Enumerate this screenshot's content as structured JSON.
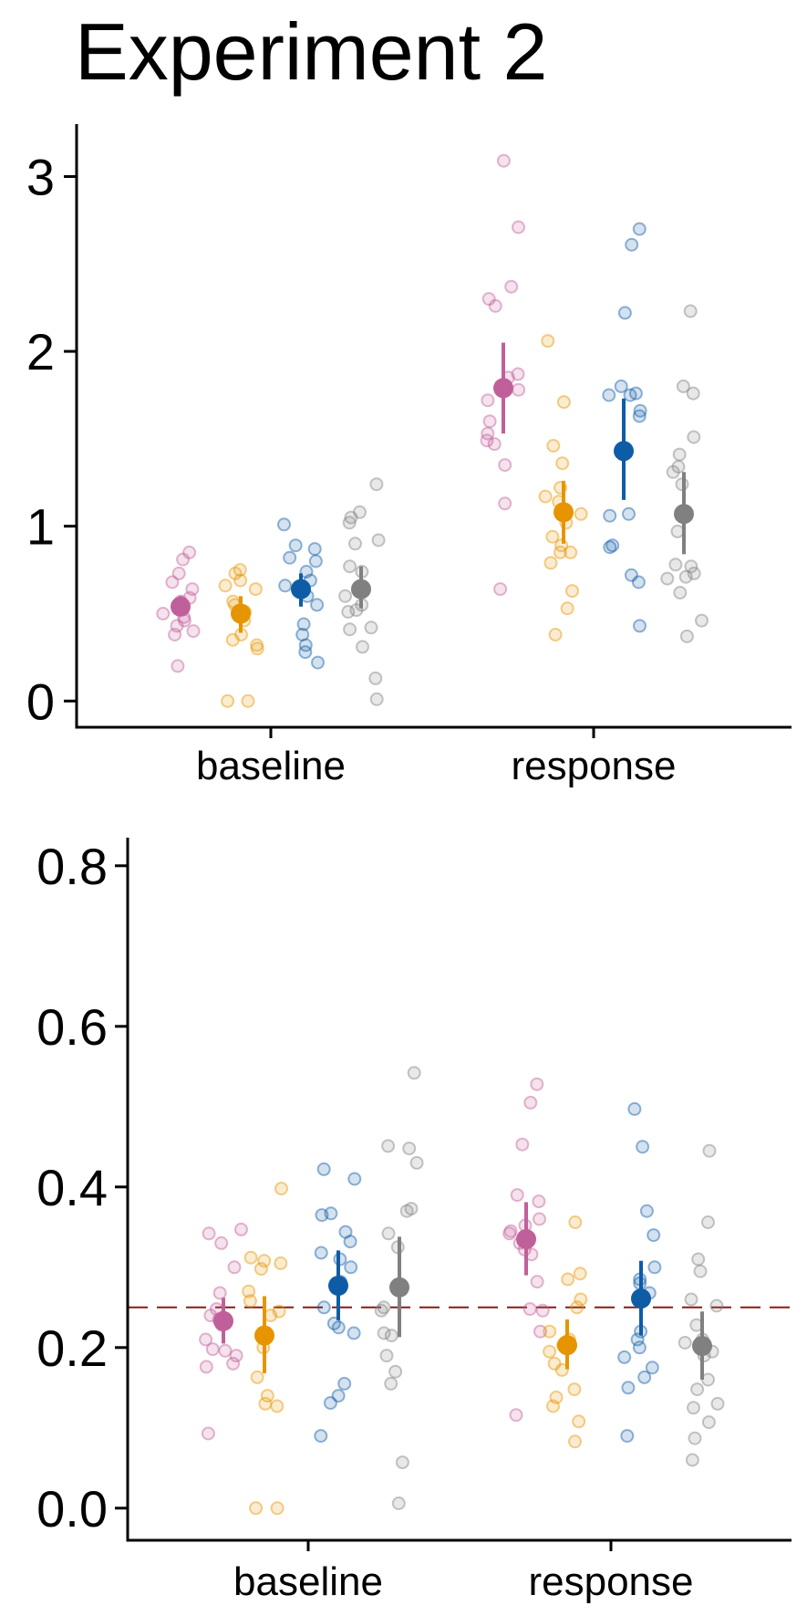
{
  "figure": {
    "title": "Experiment 2"
  },
  "colors": {
    "pink": "#C0609A",
    "orange": "#E69500",
    "blue": "#0F5CA6",
    "gray": "#808080",
    "reference_line": "#8B1A1A"
  },
  "chart_data": [
    {
      "type": "scatter",
      "title": "Experiment 2",
      "xlabel": "",
      "ylabel": "",
      "categories": [
        "baseline",
        "response"
      ],
      "ylim": [
        -0.15,
        3.3
      ],
      "yticks": [
        0,
        1,
        2,
        3
      ],
      "ytick_labels": [
        "0",
        "1",
        "2",
        "3"
      ],
      "grid": false,
      "legend": "none",
      "groups": [
        "pink",
        "orange",
        "blue",
        "gray"
      ],
      "summary": [
        {
          "category": "baseline",
          "group": "pink",
          "mean": 0.54,
          "lower": 0.49,
          "upper": 0.6
        },
        {
          "category": "baseline",
          "group": "orange",
          "mean": 0.5,
          "lower": 0.39,
          "upper": 0.6
        },
        {
          "category": "baseline",
          "group": "blue",
          "mean": 0.64,
          "lower": 0.54,
          "upper": 0.73
        },
        {
          "category": "baseline",
          "group": "gray",
          "mean": 0.64,
          "lower": 0.53,
          "upper": 0.77
        },
        {
          "category": "response",
          "group": "pink",
          "mean": 1.79,
          "lower": 1.53,
          "upper": 2.05
        },
        {
          "category": "response",
          "group": "orange",
          "mean": 1.08,
          "lower": 0.9,
          "upper": 1.26
        },
        {
          "category": "response",
          "group": "blue",
          "mean": 1.43,
          "lower": 1.15,
          "upper": 1.73
        },
        {
          "category": "response",
          "group": "gray",
          "mean": 1.07,
          "lower": 0.84,
          "upper": 1.31
        }
      ],
      "points": [
        {
          "category": "baseline",
          "group": "pink",
          "values": [
            0.85,
            0.81,
            0.73,
            0.68,
            0.64,
            0.59,
            0.57,
            0.55,
            0.53,
            0.5,
            0.48,
            0.46,
            0.43,
            0.4,
            0.38,
            0.2
          ]
        },
        {
          "category": "baseline",
          "group": "orange",
          "values": [
            0.75,
            0.73,
            0.69,
            0.66,
            0.64,
            0.57,
            0.55,
            0.51,
            0.46,
            0.38,
            0.35,
            0.32,
            0.3,
            0.0,
            0.0
          ]
        },
        {
          "category": "baseline",
          "group": "blue",
          "values": [
            1.01,
            0.89,
            0.87,
            0.82,
            0.8,
            0.74,
            0.69,
            0.66,
            0.6,
            0.55,
            0.44,
            0.38,
            0.32,
            0.28,
            0.22
          ]
        },
        {
          "category": "baseline",
          "group": "gray",
          "values": [
            1.24,
            1.08,
            1.05,
            1.02,
            0.92,
            0.9,
            0.77,
            0.74,
            0.6,
            0.55,
            0.52,
            0.51,
            0.42,
            0.41,
            0.31,
            0.13,
            0.01
          ]
        },
        {
          "category": "response",
          "group": "pink",
          "values": [
            3.09,
            2.71,
            2.37,
            2.3,
            2.26,
            1.87,
            1.85,
            1.78,
            1.72,
            1.6,
            1.53,
            1.49,
            1.47,
            1.35,
            1.13,
            0.64
          ]
        },
        {
          "category": "response",
          "group": "orange",
          "values": [
            2.06,
            1.71,
            1.46,
            1.36,
            1.22,
            1.17,
            1.14,
            1.07,
            1.02,
            0.94,
            0.89,
            0.85,
            0.85,
            0.79,
            0.63,
            0.53,
            0.38
          ]
        },
        {
          "category": "response",
          "group": "blue",
          "values": [
            2.7,
            2.61,
            2.22,
            1.8,
            1.76,
            1.75,
            1.75,
            1.66,
            1.63,
            1.07,
            1.06,
            0.89,
            0.88,
            0.72,
            0.68,
            0.43
          ]
        },
        {
          "category": "response",
          "group": "gray",
          "values": [
            2.23,
            1.8,
            1.76,
            1.51,
            1.41,
            1.34,
            1.31,
            1.24,
            0.97,
            0.78,
            0.77,
            0.73,
            0.71,
            0.7,
            0.62,
            0.46,
            0.37
          ]
        }
      ]
    },
    {
      "type": "scatter",
      "title": "",
      "xlabel": "",
      "ylabel": "",
      "categories": [
        "baseline",
        "response"
      ],
      "ylim": [
        -0.04,
        0.835
      ],
      "yticks": [
        0.0,
        0.2,
        0.4,
        0.6,
        0.8
      ],
      "ytick_labels": [
        "0.0",
        "0.2",
        "0.4",
        "0.6",
        "0.8"
      ],
      "grid": false,
      "legend": "none",
      "reference_line": {
        "y": 0.25,
        "style": "dashed"
      },
      "groups": [
        "pink",
        "orange",
        "blue",
        "gray"
      ],
      "summary": [
        {
          "category": "baseline",
          "group": "pink",
          "mean": 0.233,
          "lower": 0.205,
          "upper": 0.262
        },
        {
          "category": "baseline",
          "group": "orange",
          "mean": 0.215,
          "lower": 0.168,
          "upper": 0.264
        },
        {
          "category": "baseline",
          "group": "blue",
          "mean": 0.277,
          "lower": 0.234,
          "upper": 0.321
        },
        {
          "category": "baseline",
          "group": "gray",
          "mean": 0.275,
          "lower": 0.213,
          "upper": 0.338
        },
        {
          "category": "response",
          "group": "pink",
          "mean": 0.335,
          "lower": 0.29,
          "upper": 0.381
        },
        {
          "category": "response",
          "group": "orange",
          "mean": 0.203,
          "lower": 0.173,
          "upper": 0.235
        },
        {
          "category": "response",
          "group": "blue",
          "mean": 0.261,
          "lower": 0.215,
          "upper": 0.308
        },
        {
          "category": "response",
          "group": "gray",
          "mean": 0.202,
          "lower": 0.16,
          "upper": 0.245
        }
      ],
      "points": [
        {
          "category": "baseline",
          "group": "pink",
          "values": [
            0.347,
            0.342,
            0.33,
            0.3,
            0.268,
            0.248,
            0.24,
            0.235,
            0.228,
            0.21,
            0.198,
            0.196,
            0.19,
            0.18,
            0.176,
            0.093
          ]
        },
        {
          "category": "baseline",
          "group": "orange",
          "values": [
            0.398,
            0.312,
            0.308,
            0.305,
            0.298,
            0.27,
            0.258,
            0.245,
            0.24,
            0.2,
            0.163,
            0.14,
            0.13,
            0.127,
            0.0,
            0.0
          ]
        },
        {
          "category": "baseline",
          "group": "blue",
          "values": [
            0.422,
            0.41,
            0.367,
            0.365,
            0.344,
            0.332,
            0.318,
            0.31,
            0.3,
            0.282,
            0.25,
            0.23,
            0.225,
            0.218,
            0.155,
            0.14,
            0.131,
            0.09
          ]
        },
        {
          "category": "baseline",
          "group": "gray",
          "values": [
            0.542,
            0.451,
            0.448,
            0.43,
            0.373,
            0.37,
            0.342,
            0.325,
            0.25,
            0.246,
            0.218,
            0.215,
            0.19,
            0.17,
            0.155,
            0.057,
            0.006
          ]
        },
        {
          "category": "response",
          "group": "pink",
          "values": [
            0.528,
            0.505,
            0.453,
            0.39,
            0.382,
            0.36,
            0.352,
            0.345,
            0.342,
            0.33,
            0.322,
            0.316,
            0.282,
            0.248,
            0.246,
            0.22,
            0.116
          ]
        },
        {
          "category": "response",
          "group": "orange",
          "values": [
            0.356,
            0.292,
            0.285,
            0.26,
            0.25,
            0.22,
            0.21,
            0.203,
            0.195,
            0.18,
            0.172,
            0.148,
            0.138,
            0.127,
            0.108,
            0.083
          ]
        },
        {
          "category": "response",
          "group": "blue",
          "values": [
            0.497,
            0.45,
            0.37,
            0.34,
            0.3,
            0.285,
            0.28,
            0.268,
            0.22,
            0.21,
            0.2,
            0.188,
            0.175,
            0.163,
            0.15,
            0.09
          ]
        },
        {
          "category": "response",
          "group": "gray",
          "values": [
            0.445,
            0.356,
            0.31,
            0.295,
            0.26,
            0.252,
            0.228,
            0.21,
            0.206,
            0.195,
            0.19,
            0.16,
            0.148,
            0.13,
            0.125,
            0.107,
            0.087,
            0.06
          ]
        }
      ]
    }
  ]
}
